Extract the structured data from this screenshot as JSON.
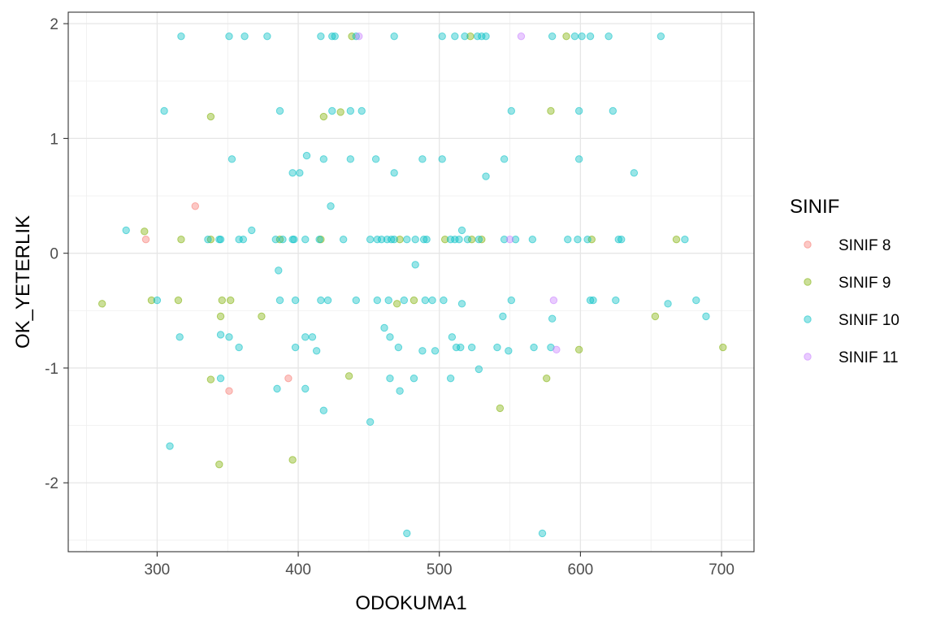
{
  "chart_data": {
    "type": "scatter",
    "xlabel": "ODOKUMA1",
    "ylabel": "OK_YETERLIK",
    "xlim": [
      237,
      723
    ],
    "ylim": [
      -2.6,
      2.1
    ],
    "x_ticks": [
      300,
      400,
      500,
      600,
      700
    ],
    "x_tick_labels": [
      "300",
      "400",
      "500",
      "600",
      "700"
    ],
    "y_ticks": [
      -2,
      -1,
      0,
      1,
      2
    ],
    "y_tick_labels": [
      "-2",
      "-1",
      "0",
      "1",
      "2"
    ],
    "grid": true,
    "legend": {
      "title": "SINIF",
      "placement": "right",
      "entries": [
        "SINIF 8",
        "SINIF 9",
        "SINIF 10",
        "SINIF 11"
      ]
    },
    "series": [
      {
        "name": "SINIF 8",
        "color": "#F8766D",
        "points": [
          [
            292,
            0.12
          ],
          [
            327,
            0.41
          ],
          [
            393,
            -1.09
          ],
          [
            351,
            -1.2
          ]
        ]
      },
      {
        "name": "SINIF 9",
        "color": "#7CAE00",
        "points": [
          [
            261,
            -0.44
          ],
          [
            291,
            0.19
          ],
          [
            296,
            -0.41
          ],
          [
            315,
            -0.41
          ],
          [
            317,
            0.12
          ],
          [
            338,
            1.19
          ],
          [
            338,
            0.12
          ],
          [
            338,
            -1.1
          ],
          [
            344,
            -1.84
          ],
          [
            345,
            -0.55
          ],
          [
            346,
            -0.41
          ],
          [
            352,
            -0.41
          ],
          [
            374,
            -0.55
          ],
          [
            387,
            0.12
          ],
          [
            396,
            -1.8
          ],
          [
            416,
            0.12
          ],
          [
            418,
            1.19
          ],
          [
            430,
            1.23
          ],
          [
            436,
            -1.07
          ],
          [
            438,
            1.89
          ],
          [
            470,
            -0.44
          ],
          [
            472,
            0.12
          ],
          [
            482,
            -0.41
          ],
          [
            504,
            0.12
          ],
          [
            522,
            1.89
          ],
          [
            523,
            0.12
          ],
          [
            530,
            0.12
          ],
          [
            543,
            -1.35
          ],
          [
            576,
            -1.09
          ],
          [
            579,
            1.24
          ],
          [
            590,
            1.89
          ],
          [
            599,
            -0.84
          ],
          [
            608,
            0.12
          ],
          [
            653,
            -0.55
          ],
          [
            668,
            0.12
          ],
          [
            701,
            -0.82
          ]
        ]
      },
      {
        "name": "SINIF 10",
        "color": "#00BFC4",
        "points": [
          [
            317,
            1.89
          ],
          [
            351,
            1.89
          ],
          [
            362,
            1.89
          ],
          [
            378,
            1.89
          ],
          [
            416,
            1.89
          ],
          [
            424,
            1.89
          ],
          [
            426,
            1.89
          ],
          [
            441,
            1.89
          ],
          [
            468,
            1.89
          ],
          [
            502,
            1.89
          ],
          [
            511,
            1.89
          ],
          [
            518,
            1.89
          ],
          [
            527,
            1.89
          ],
          [
            530,
            1.89
          ],
          [
            533,
            1.89
          ],
          [
            580,
            1.89
          ],
          [
            596,
            1.89
          ],
          [
            601,
            1.89
          ],
          [
            607,
            1.89
          ],
          [
            620,
            1.89
          ],
          [
            657,
            1.89
          ],
          [
            305,
            1.24
          ],
          [
            387,
            1.24
          ],
          [
            424,
            1.24
          ],
          [
            437,
            1.24
          ],
          [
            445,
            1.24
          ],
          [
            551,
            1.24
          ],
          [
            599,
            1.24
          ],
          [
            623,
            1.24
          ],
          [
            353,
            0.82
          ],
          [
            406,
            0.85
          ],
          [
            418,
            0.82
          ],
          [
            437,
            0.82
          ],
          [
            455,
            0.82
          ],
          [
            488,
            0.82
          ],
          [
            502,
            0.82
          ],
          [
            546,
            0.82
          ],
          [
            599,
            0.82
          ],
          [
            396,
            0.7
          ],
          [
            401,
            0.7
          ],
          [
            468,
            0.7
          ],
          [
            533,
            0.67
          ],
          [
            638,
            0.7
          ],
          [
            423,
            0.41
          ],
          [
            278,
            0.2
          ],
          [
            367,
            0.2
          ],
          [
            516,
            0.2
          ],
          [
            336,
            0.12
          ],
          [
            344,
            0.12
          ],
          [
            345,
            0.12
          ],
          [
            358,
            0.12
          ],
          [
            361,
            0.12
          ],
          [
            384,
            0.12
          ],
          [
            389,
            0.12
          ],
          [
            396,
            0.12
          ],
          [
            397,
            0.12
          ],
          [
            405,
            0.12
          ],
          [
            415,
            0.12
          ],
          [
            432,
            0.12
          ],
          [
            451,
            0.12
          ],
          [
            456,
            0.12
          ],
          [
            459,
            0.12
          ],
          [
            463,
            0.12
          ],
          [
            466,
            0.12
          ],
          [
            468,
            0.12
          ],
          [
            477,
            0.12
          ],
          [
            483,
            0.12
          ],
          [
            489,
            0.12
          ],
          [
            491,
            0.12
          ],
          [
            508,
            0.12
          ],
          [
            511,
            0.12
          ],
          [
            514,
            0.12
          ],
          [
            520,
            0.12
          ],
          [
            528,
            0.12
          ],
          [
            546,
            0.12
          ],
          [
            554,
            0.12
          ],
          [
            566,
            0.12
          ],
          [
            591,
            0.12
          ],
          [
            598,
            0.12
          ],
          [
            605,
            0.12
          ],
          [
            627,
            0.12
          ],
          [
            629,
            0.12
          ],
          [
            674,
            0.12
          ],
          [
            483,
            -0.1
          ],
          [
            386,
            -0.15
          ],
          [
            300,
            -0.41
          ],
          [
            387,
            -0.41
          ],
          [
            398,
            -0.41
          ],
          [
            416,
            -0.41
          ],
          [
            421,
            -0.41
          ],
          [
            441,
            -0.41
          ],
          [
            456,
            -0.41
          ],
          [
            464,
            -0.41
          ],
          [
            475,
            -0.41
          ],
          [
            490,
            -0.41
          ],
          [
            495,
            -0.41
          ],
          [
            503,
            -0.41
          ],
          [
            551,
            -0.41
          ],
          [
            607,
            -0.41
          ],
          [
            609,
            -0.41
          ],
          [
            625,
            -0.41
          ],
          [
            682,
            -0.41
          ],
          [
            516,
            -0.44
          ],
          [
            662,
            -0.44
          ],
          [
            545,
            -0.55
          ],
          [
            580,
            -0.57
          ],
          [
            689,
            -0.55
          ],
          [
            461,
            -0.65
          ],
          [
            316,
            -0.73
          ],
          [
            345,
            -0.71
          ],
          [
            351,
            -0.73
          ],
          [
            405,
            -0.73
          ],
          [
            410,
            -0.73
          ],
          [
            465,
            -0.73
          ],
          [
            509,
            -0.73
          ],
          [
            358,
            -0.82
          ],
          [
            398,
            -0.82
          ],
          [
            471,
            -0.82
          ],
          [
            512,
            -0.82
          ],
          [
            515,
            -0.82
          ],
          [
            523,
            -0.82
          ],
          [
            541,
            -0.82
          ],
          [
            567,
            -0.82
          ],
          [
            579,
            -0.82
          ],
          [
            413,
            -0.85
          ],
          [
            488,
            -0.85
          ],
          [
            497,
            -0.85
          ],
          [
            549,
            -0.85
          ],
          [
            528,
            -1.01
          ],
          [
            345,
            -1.09
          ],
          [
            465,
            -1.09
          ],
          [
            482,
            -1.09
          ],
          [
            508,
            -1.09
          ],
          [
            385,
            -1.18
          ],
          [
            405,
            -1.18
          ],
          [
            472,
            -1.2
          ],
          [
            418,
            -1.37
          ],
          [
            451,
            -1.47
          ],
          [
            309,
            -1.68
          ],
          [
            477,
            -2.44
          ],
          [
            573,
            -2.44
          ]
        ]
      },
      {
        "name": "SINIF 11",
        "color": "#C77CFF",
        "points": [
          [
            443,
            1.89
          ],
          [
            558,
            1.89
          ],
          [
            550,
            0.12
          ],
          [
            581,
            -0.41
          ],
          [
            583,
            -0.84
          ]
        ]
      }
    ]
  }
}
